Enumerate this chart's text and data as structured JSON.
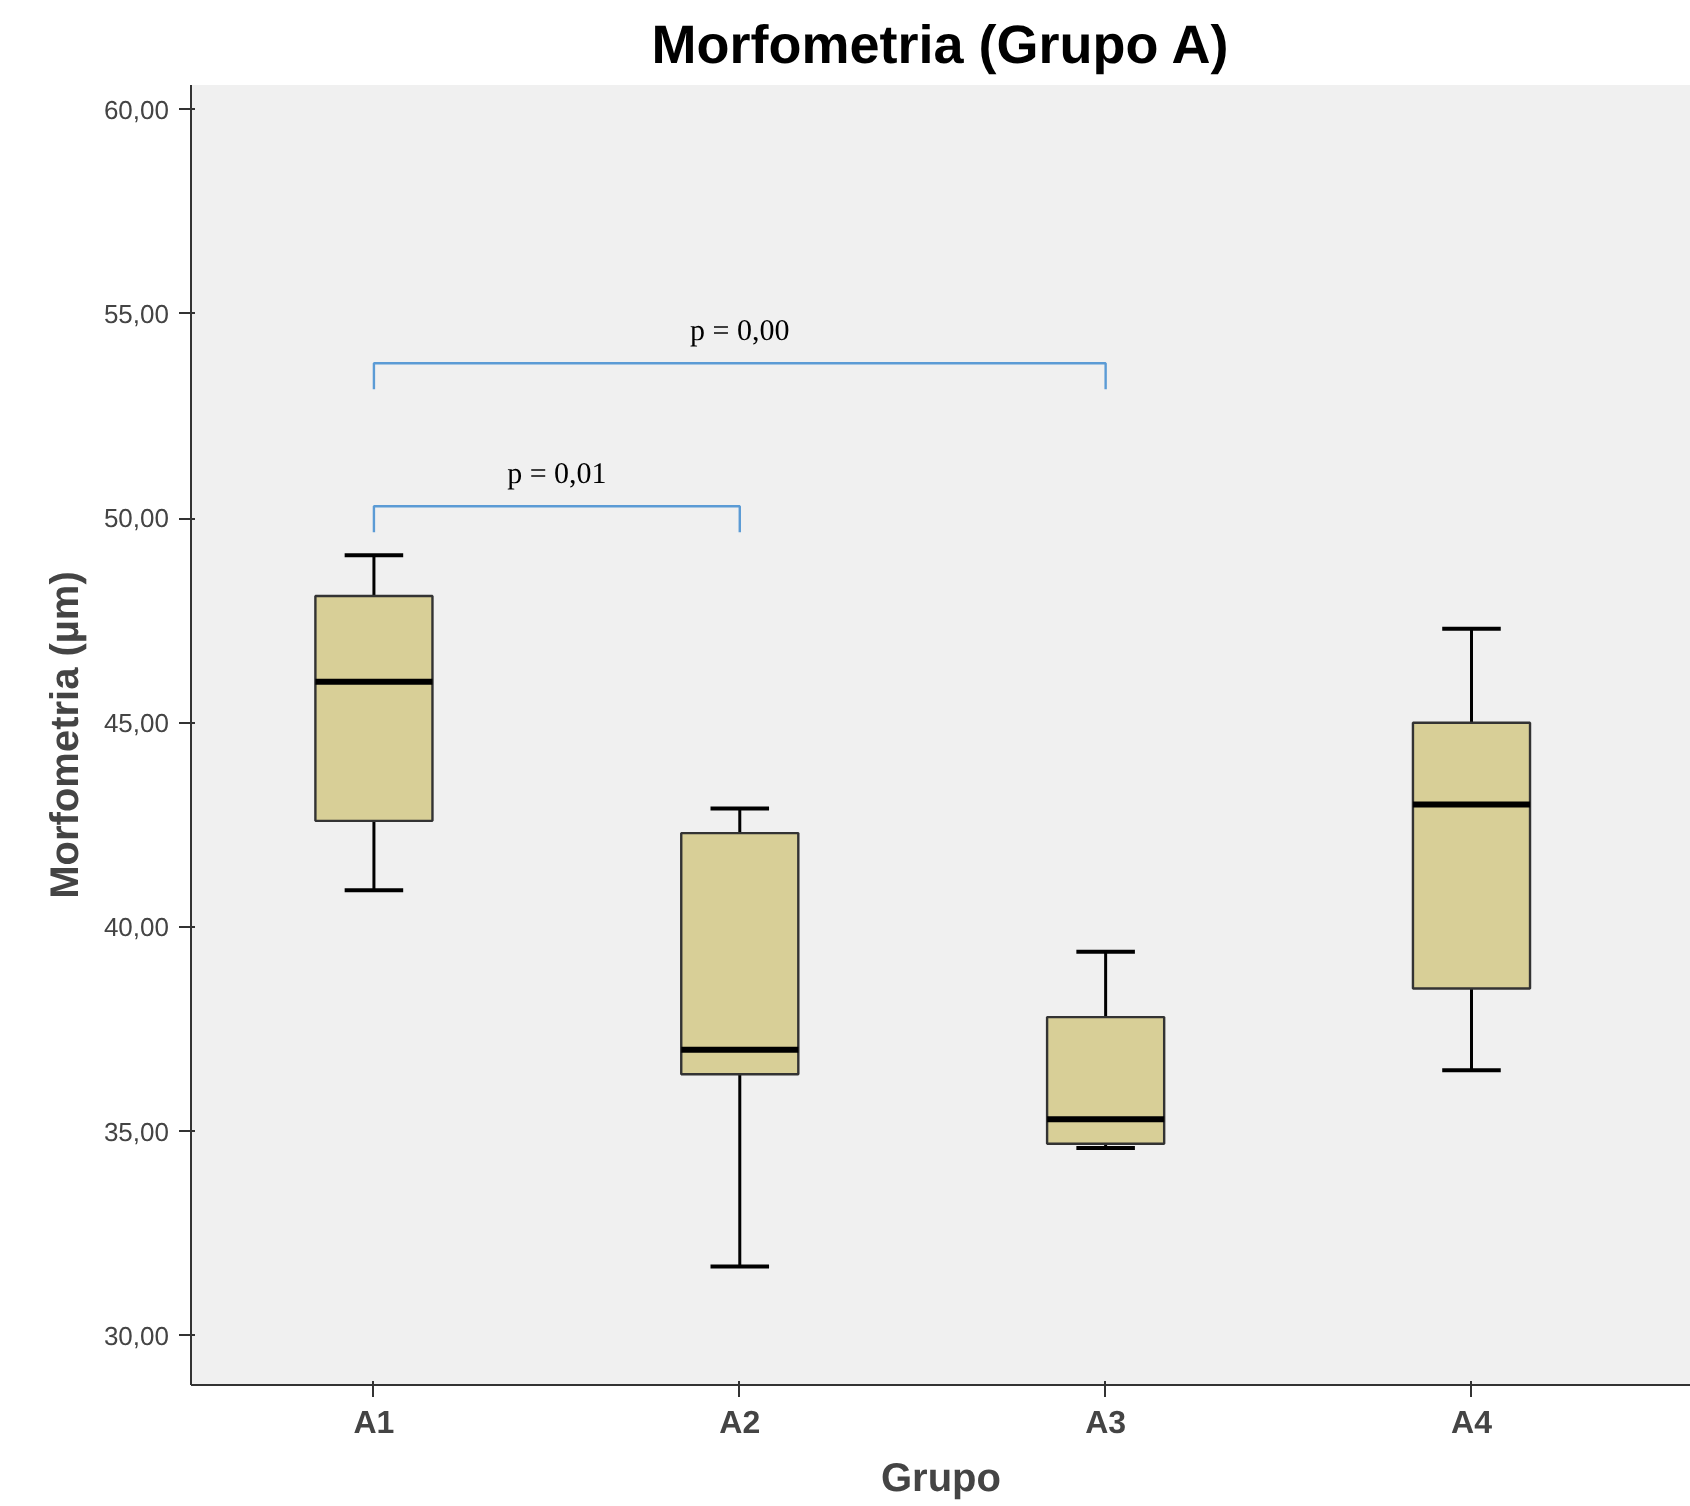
{
  "chart_data": {
    "type": "box",
    "title": "Morfometria (Grupo A)",
    "xlabel": "Grupo",
    "ylabel": "Morfometria (µm)",
    "categories": [
      "A1",
      "A2",
      "A3",
      "A4"
    ],
    "series": [
      {
        "color": "#d8cf97",
        "boxes": [
          {
            "low": 40.9,
            "q1": 42.6,
            "median": 46.0,
            "q3": 48.1,
            "high": 49.1
          },
          {
            "low": 31.7,
            "q1": 36.4,
            "median": 37.0,
            "q3": 42.3,
            "high": 42.9
          },
          {
            "low": 34.6,
            "q1": 34.7,
            "median": 35.3,
            "q3": 37.8,
            "high": 39.4
          },
          {
            "low": 36.5,
            "q1": 38.5,
            "median": 43.0,
            "q3": 45.0,
            "high": 47.3
          }
        ]
      }
    ],
    "ylim": [
      28.8,
      60.6
    ],
    "yticks": [
      {
        "value": 30,
        "label": "30,00"
      },
      {
        "value": 35,
        "label": "35,00"
      },
      {
        "value": 40,
        "label": "40,00"
      },
      {
        "value": 45,
        "label": "45,00"
      },
      {
        "value": 50,
        "label": "50,00"
      },
      {
        "value": 55,
        "label": "55,00"
      },
      {
        "value": 60,
        "label": "60,00"
      }
    ],
    "annotations": [
      "p = 0,01",
      "p = 0,00"
    ],
    "grid": false
  }
}
